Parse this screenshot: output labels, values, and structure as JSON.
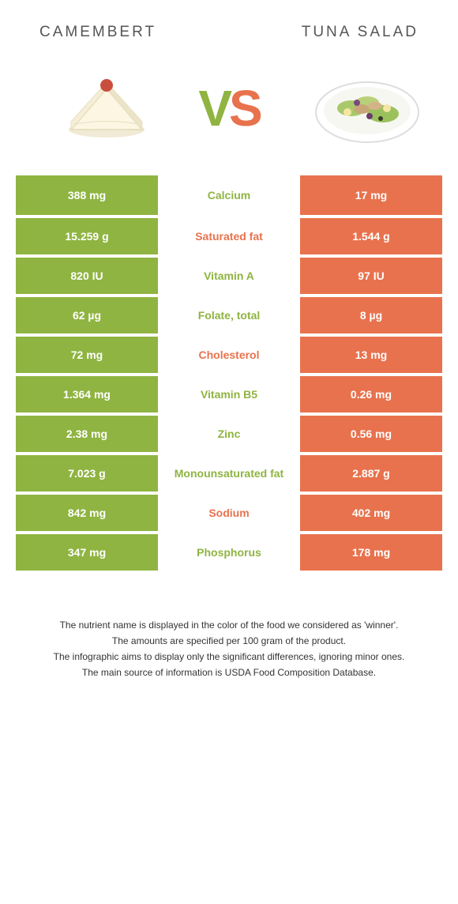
{
  "header": {
    "left_title": "Camembert",
    "right_title": "Tuna salad"
  },
  "vs": {
    "v": "V",
    "s": "S"
  },
  "colors": {
    "left": "#8fb441",
    "right": "#e8724d",
    "row_gap": "#ffffff"
  },
  "table": {
    "rows": [
      {
        "left": "388 mg",
        "label": "Calcium",
        "right": "17 mg",
        "winner": "left"
      },
      {
        "left": "15.259 g",
        "label": "Saturated fat",
        "right": "1.544 g",
        "winner": "right"
      },
      {
        "left": "820 IU",
        "label": "Vitamin A",
        "right": "97 IU",
        "winner": "left"
      },
      {
        "left": "62 µg",
        "label": "Folate, total",
        "right": "8 µg",
        "winner": "left"
      },
      {
        "left": "72 mg",
        "label": "Cholesterol",
        "right": "13 mg",
        "winner": "right"
      },
      {
        "left": "1.364 mg",
        "label": "Vitamin B5",
        "right": "0.26 mg",
        "winner": "left"
      },
      {
        "left": "2.38 mg",
        "label": "Zinc",
        "right": "0.56 mg",
        "winner": "left"
      },
      {
        "left": "7.023 g",
        "label": "Monounsaturated fat",
        "right": "2.887 g",
        "winner": "left"
      },
      {
        "left": "842 mg",
        "label": "Sodium",
        "right": "402 mg",
        "winner": "right"
      },
      {
        "left": "347 mg",
        "label": "Phosphorus",
        "right": "178 mg",
        "winner": "left"
      }
    ]
  },
  "notes": {
    "line1": "The nutrient name is displayed in the color of the food we considered as 'winner'.",
    "line2": "The amounts are specified per 100 gram of the product.",
    "line3": "The infographic aims to display only the significant differences, ignoring minor ones.",
    "line4": "The main source of information is USDA Food Composition Database."
  }
}
